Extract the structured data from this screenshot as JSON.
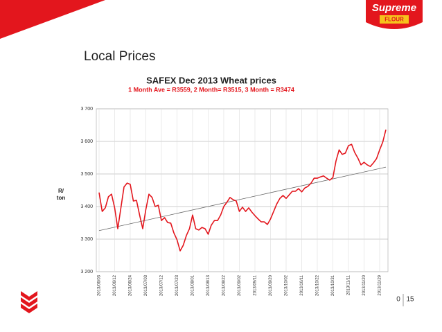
{
  "slide": {
    "heading": "Local Prices",
    "logo": {
      "brand": "Supreme",
      "product": "FLOUR"
    },
    "page": [
      "0",
      "15"
    ]
  },
  "chart_data": {
    "type": "line",
    "title": "SAFEX Dec 2013 Wheat prices",
    "subtitle": "1 Month Ave = R3559, 2 Month= R3515, 3 Month = R3474",
    "ylabel": [
      "R/",
      "ton"
    ],
    "categories": [
      "2013/06/03",
      null,
      null,
      null,
      null,
      "2013/06/12",
      null,
      null,
      null,
      null,
      "2013/06/24",
      null,
      null,
      null,
      null,
      "2013/07/03",
      null,
      null,
      null,
      null,
      "2013/07/12",
      null,
      null,
      null,
      null,
      "2013/07/23",
      null,
      null,
      null,
      null,
      "2013/08/01",
      null,
      null,
      null,
      null,
      "2013/08/13",
      null,
      null,
      null,
      null,
      "2013/08/22",
      null,
      null,
      null,
      null,
      "2013/09/02",
      null,
      null,
      null,
      null,
      "2013/09/11",
      null,
      null,
      null,
      null,
      "2013/09/20",
      null,
      null,
      null,
      null,
      "2013/10/02",
      null,
      null,
      null,
      null,
      "2013/10/11",
      null,
      null,
      null,
      null,
      "2013/10/22",
      null,
      null,
      null,
      null,
      "2013/10/31",
      null,
      null,
      null,
      null,
      "2013/11/11",
      null,
      null,
      null,
      null,
      "2013/11/20",
      null,
      null,
      null,
      null,
      "2013/11/29",
      null,
      null
    ],
    "values": [
      3443,
      3385,
      3396,
      3430,
      3438,
      3396,
      3332,
      3396,
      3460,
      3472,
      3468,
      3417,
      3419,
      3374,
      3332,
      3391,
      3438,
      3428,
      3400,
      3404,
      3357,
      3366,
      3351,
      3349,
      3319,
      3298,
      3264,
      3281,
      3311,
      3332,
      3374,
      3332,
      3328,
      3336,
      3332,
      3315,
      3343,
      3357,
      3357,
      3374,
      3400,
      3413,
      3428,
      3421,
      3417,
      3385,
      3398,
      3385,
      3396,
      3383,
      3372,
      3362,
      3353,
      3353,
      3345,
      3362,
      3385,
      3408,
      3425,
      3434,
      3425,
      3436,
      3447,
      3447,
      3455,
      3445,
      3457,
      3462,
      3472,
      3487,
      3487,
      3491,
      3494,
      3487,
      3481,
      3489,
      3540,
      3574,
      3560,
      3564,
      3587,
      3591,
      3566,
      3549,
      3528,
      3536,
      3528,
      3523,
      3534,
      3547,
      3574,
      3598,
      3636
    ],
    "color": "#e3161d",
    "trend": [
      3326,
      3521
    ],
    "trend_color": "#666666",
    "ylim": [
      3200,
      3700
    ],
    "yticks": [
      {
        "value": 3200,
        "label": "3 200"
      },
      {
        "value": 3300,
        "label": "3 300"
      },
      {
        "value": 3400,
        "label": "3 400"
      },
      {
        "value": 3500,
        "label": "3 500"
      },
      {
        "value": 3600,
        "label": "3 600"
      },
      {
        "value": 3700,
        "label": "3 700"
      }
    ],
    "grid": true
  }
}
